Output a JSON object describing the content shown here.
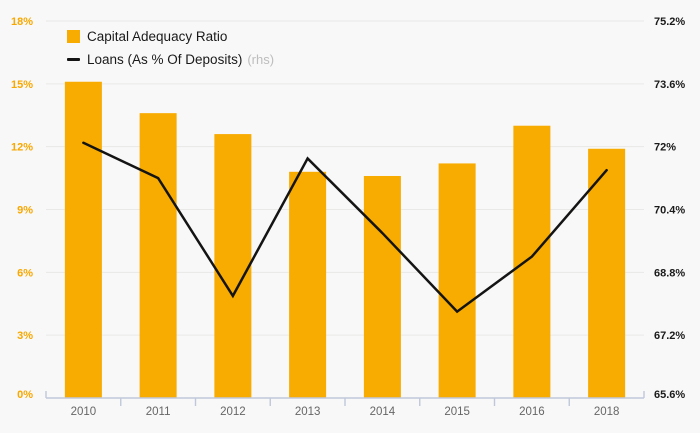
{
  "legend": {
    "items": [
      {
        "label": "Capital Adequacy Ratio",
        "suffix": ""
      },
      {
        "label": "Loans (As % Of Deposits)",
        "suffix": "(rhs)"
      }
    ]
  },
  "chart_data": {
    "type": "combo-bar-line",
    "title": "",
    "categories": [
      "2010",
      "2011",
      "2012",
      "2013",
      "2014",
      "2015",
      "2016",
      "2018"
    ],
    "series": [
      {
        "name": "Capital Adequacy Ratio",
        "type": "bar",
        "axis": "left",
        "color": "#f8ab00",
        "values": [
          15.1,
          13.6,
          12.6,
          10.8,
          10.6,
          11.2,
          13.0,
          11.9
        ]
      },
      {
        "name": "Loans (As % Of Deposits)",
        "type": "line",
        "axis": "right",
        "color": "#141414",
        "values": [
          72.1,
          71.2,
          68.2,
          71.7,
          69.8,
          67.8,
          69.2,
          71.4
        ]
      }
    ],
    "left_axis": {
      "min": 0,
      "max": 18,
      "step": 3,
      "tick_labels": [
        "0%",
        "3%",
        "6%",
        "9%",
        "12%",
        "15%",
        "18%"
      ],
      "text_color": "#f8a800"
    },
    "right_axis": {
      "min": 65.6,
      "max": 75.2,
      "step": 1.6,
      "tick_labels": [
        "65.6%",
        "67.2%",
        "68.8%",
        "70.4%",
        "72%",
        "73.6%",
        "75.2%"
      ],
      "text_color": "#1a1a1a"
    },
    "x_axis": {
      "text_color": "#666666",
      "line_color": "#bfc8da"
    },
    "grid": {
      "visible": true,
      "color": "#e9e9e7"
    },
    "background": "#f8f8f8",
    "legend_position": "top-left"
  }
}
